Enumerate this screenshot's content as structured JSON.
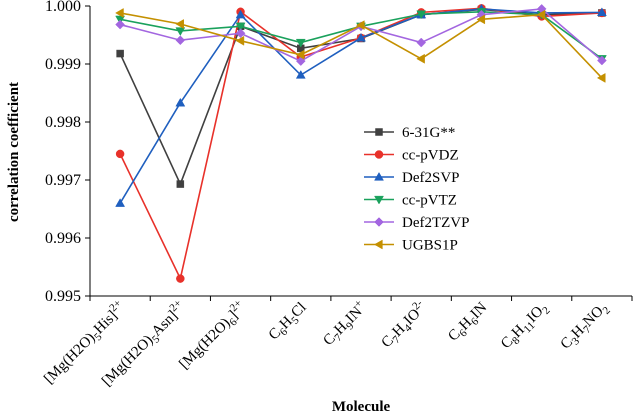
{
  "chart_data": {
    "type": "line",
    "xlabel": "Molecule",
    "ylabel": "correlation coefficient",
    "ylim": [
      0.995,
      1.0
    ],
    "yticks": [
      "0.995",
      "0.996",
      "0.997",
      "0.998",
      "0.999",
      "1.000"
    ],
    "grid": false,
    "legend_position": "center-right",
    "categories": [
      "[Mg(H2O)5His]2+",
      "[Mg(H2O)5Asn]2+",
      "[Mg(H2O)6]2+",
      "C6H5Cl",
      "C7H9IN+",
      "C7H4IO2-",
      "C6H6IN",
      "C8H11IO2",
      "C3H7NO2"
    ],
    "categories_rich": [
      [
        {
          "t": "[Mg(H2O)"
        },
        {
          "t": "5",
          "s": "sub"
        },
        {
          "t": "His]"
        },
        {
          "t": "2+",
          "s": "sup"
        }
      ],
      [
        {
          "t": "[Mg(H2O)"
        },
        {
          "t": "5",
          "s": "sub"
        },
        {
          "t": "Asn]"
        },
        {
          "t": "2+",
          "s": "sup"
        }
      ],
      [
        {
          "t": "[Mg(H2O)"
        },
        {
          "t": "6",
          "s": "sub"
        },
        {
          "t": "]"
        },
        {
          "t": "2+",
          "s": "sup"
        }
      ],
      [
        {
          "t": "C"
        },
        {
          "t": "6",
          "s": "sub"
        },
        {
          "t": "H"
        },
        {
          "t": "5",
          "s": "sub"
        },
        {
          "t": "Cl"
        }
      ],
      [
        {
          "t": "C"
        },
        {
          "t": "7",
          "s": "sub"
        },
        {
          "t": "H"
        },
        {
          "t": "9",
          "s": "sub"
        },
        {
          "t": "IN"
        },
        {
          "t": "+",
          "s": "sup"
        }
      ],
      [
        {
          "t": "C"
        },
        {
          "t": "7",
          "s": "sub"
        },
        {
          "t": "H"
        },
        {
          "t": "4",
          "s": "sub"
        },
        {
          "t": "IO"
        },
        {
          "t": "2-",
          "s": "sup"
        }
      ],
      [
        {
          "t": "C"
        },
        {
          "t": "6",
          "s": "sub"
        },
        {
          "t": "H"
        },
        {
          "t": "6",
          "s": "sub"
        },
        {
          "t": "IN"
        }
      ],
      [
        {
          "t": "C"
        },
        {
          "t": "8",
          "s": "sub"
        },
        {
          "t": "H"
        },
        {
          "t": "11",
          "s": "sub"
        },
        {
          "t": "IO"
        },
        {
          "t": "2",
          "s": "sub"
        }
      ],
      [
        {
          "t": "C"
        },
        {
          "t": "3",
          "s": "sub"
        },
        {
          "t": "H"
        },
        {
          "t": "7",
          "s": "sub"
        },
        {
          "t": "NO"
        },
        {
          "t": "2",
          "s": "sub"
        }
      ]
    ],
    "series": [
      {
        "name": "6-31G**",
        "color": "#404040",
        "marker": "square",
        "values": [
          0.99918,
          0.99693,
          0.99965,
          0.99927,
          0.99944,
          0.99985,
          0.99994,
          0.99985,
          0.99988
        ]
      },
      {
        "name": "cc-pVDZ",
        "color": "#e8312a",
        "marker": "circle",
        "values": [
          0.99745,
          0.9953,
          0.9999,
          0.99912,
          0.99945,
          0.99989,
          0.99996,
          0.99982,
          0.99988
        ]
      },
      {
        "name": "Def2SVP",
        "color": "#1f5fbf",
        "marker": "triangle-up",
        "values": [
          0.9966,
          0.99833,
          0.99985,
          0.99881,
          0.99945,
          0.99985,
          0.99995,
          0.99988,
          0.99989
        ]
      },
      {
        "name": "cc-pVTZ",
        "color": "#1aa15c",
        "marker": "triangle-down",
        "values": [
          0.99977,
          0.99957,
          0.99965,
          0.99937,
          0.99965,
          0.99986,
          0.9999,
          0.99985,
          0.99909
        ]
      },
      {
        "name": "Def2TZVP",
        "color": "#a366e0",
        "marker": "diamond",
        "values": [
          0.99968,
          0.99941,
          0.99953,
          0.99905,
          0.99965,
          0.99937,
          0.99985,
          0.99995,
          0.99906
        ]
      },
      {
        "name": "UGBS1P",
        "color": "#c49000",
        "marker": "triangle-left",
        "values": [
          0.99988,
          0.99969,
          0.9994,
          0.99916,
          0.99967,
          0.99909,
          0.99977,
          0.99985,
          0.99876
        ]
      }
    ]
  }
}
